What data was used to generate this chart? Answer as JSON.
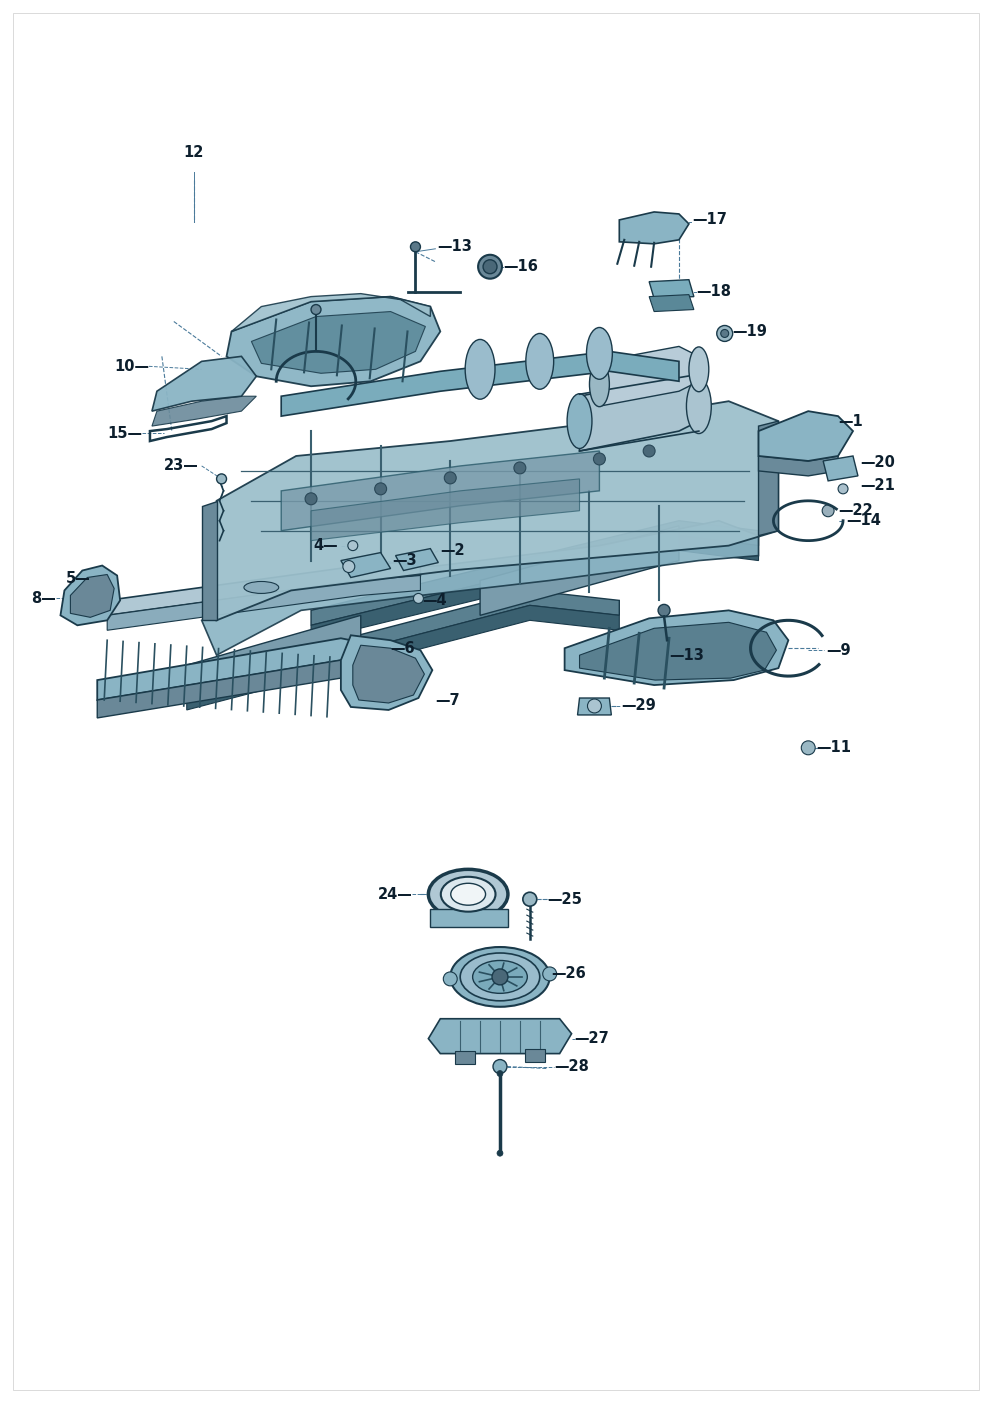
{
  "bg_color": "#ffffff",
  "lc": "#1a3a4a",
  "fill_light": "#b8d0da",
  "fill_mid": "#8ab0be",
  "fill_dark": "#5a8090",
  "fill_darker": "#3a6070",
  "edge_col": "#1a3a4a",
  "label_color": "#0d1f2d",
  "label_fs": 10.5,
  "fig_w": 9.92,
  "fig_h": 14.03,
  "dpi": 100
}
